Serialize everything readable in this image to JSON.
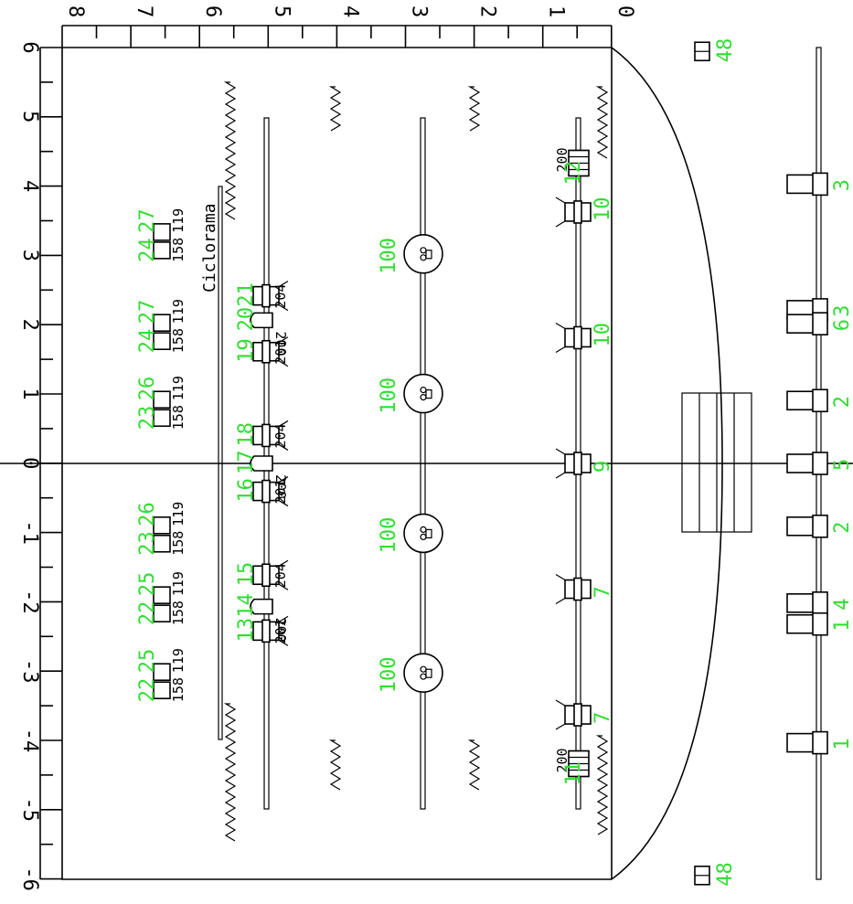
{
  "labels": {
    "ciclorama": "Ciclorama"
  },
  "scale_top": {
    "ticks": [
      "8",
      "7",
      "6",
      "5",
      "4",
      "3",
      "2",
      "1",
      "0"
    ]
  },
  "scale_left": {
    "ticks": [
      "6",
      "5",
      "4",
      "3",
      "2",
      "1",
      "0",
      "-1",
      "-2",
      "-3",
      "-4",
      "-5",
      "-6"
    ]
  },
  "fixtures": {
    "front_bar": [
      {
        "ch": "3",
        "y": 4.0
      },
      {
        "ch": "3",
        "y": 2.2
      },
      {
        "ch": "6",
        "y": 2.0
      },
      {
        "ch": "2",
        "y": 0.9
      },
      {
        "ch": "5",
        "y": 0.0
      },
      {
        "ch": "2",
        "y": -0.9
      },
      {
        "ch": "4",
        "y": -2.0
      },
      {
        "ch": "1",
        "y": -2.3
      },
      {
        "ch": "1",
        "y": -4.0
      }
    ],
    "bar1": [
      {
        "ch": "12",
        "y": 4.3,
        "type": "200",
        "kind": "box"
      },
      {
        "ch": "10",
        "y": 3.6
      },
      {
        "ch": "10",
        "y": 1.8
      },
      {
        "ch": "9",
        "y": 0.0
      },
      {
        "ch": "7",
        "y": -1.8
      },
      {
        "ch": "7",
        "y": -3.6
      },
      {
        "ch": "11",
        "y": -4.3,
        "type": "200",
        "kind": "box"
      }
    ],
    "bar3": [
      {
        "ch": "100",
        "y": 3.0
      },
      {
        "ch": "100",
        "y": 1.0
      },
      {
        "ch": "100",
        "y": -1.0
      },
      {
        "ch": "100",
        "y": -3.0
      }
    ],
    "bar5": [
      {
        "ch": "21",
        "y": 2.4,
        "type": "204",
        "kind": "spot"
      },
      {
        "ch": "20",
        "y": 2.05,
        "type": "200",
        "kind": "par"
      },
      {
        "ch": "19",
        "y": 1.6,
        "type": "201",
        "kind": "spot"
      },
      {
        "ch": "18",
        "y": 0.4,
        "type": "204",
        "kind": "spot"
      },
      {
        "ch": "17",
        "y": 0.0,
        "type": "200",
        "kind": "par"
      },
      {
        "ch": "16",
        "y": -0.4,
        "type": "201",
        "kind": "spot"
      },
      {
        "ch": "15",
        "y": -1.6,
        "type": "204",
        "kind": "spot"
      },
      {
        "ch": "14",
        "y": -2.05,
        "type": "200",
        "kind": "par"
      },
      {
        "ch": "13",
        "y": -2.4,
        "type": "201",
        "kind": "spot"
      }
    ],
    "cyc_units": [
      {
        "chA": "24",
        "chB": "27",
        "y": 3.3,
        "typeA": "158",
        "typeB": "119"
      },
      {
        "chA": "24",
        "chB": "27",
        "y": 2.0,
        "typeA": "158",
        "typeB": "119"
      },
      {
        "chA": "23",
        "chB": "26",
        "y": 0.9,
        "typeA": "158",
        "typeB": "119"
      },
      {
        "chA": "23",
        "chB": "26",
        "y": -0.9,
        "typeA": "158",
        "typeB": "119"
      },
      {
        "chA": "22",
        "chB": "25",
        "y": -1.9,
        "typeA": "158",
        "typeB": "119"
      },
      {
        "chA": "22",
        "chB": "25",
        "y": -3.0,
        "typeA": "158",
        "typeB": "119"
      }
    ],
    "foh": [
      {
        "ch": "48",
        "y": 5.9
      },
      {
        "ch": "48",
        "y": -5.9
      }
    ]
  }
}
